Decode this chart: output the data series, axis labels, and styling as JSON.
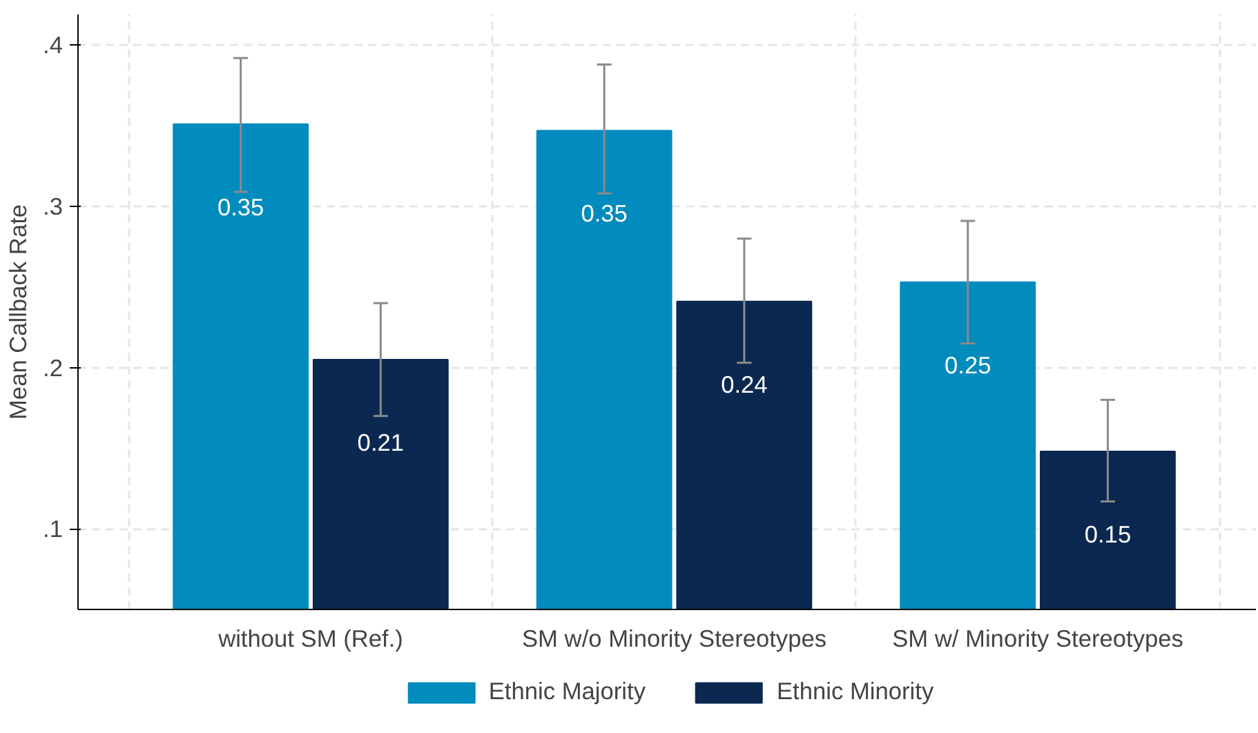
{
  "chart_data": {
    "type": "bar",
    "ylabel": "Mean Callback Rate",
    "categories": [
      "without SM (Ref.)",
      "SM w/o Minority Stereotypes",
      "SM w/ Minority Stereotypes"
    ],
    "series": [
      {
        "name": "Ethnic Majority",
        "color": "#028bbd",
        "values": [
          0.351,
          0.347,
          0.253
        ],
        "errors": [
          [
            0.309,
            0.392
          ],
          [
            0.308,
            0.388
          ],
          [
            0.215,
            0.291
          ]
        ],
        "value_labels": [
          "0.35",
          "0.35",
          "0.25"
        ]
      },
      {
        "name": "Ethnic Minority",
        "color": "#0b2850",
        "values": [
          0.205,
          0.241,
          0.148
        ],
        "errors": [
          [
            0.17,
            0.24
          ],
          [
            0.203,
            0.28
          ],
          [
            0.117,
            0.18
          ]
        ],
        "value_labels": [
          "0.21",
          "0.24",
          "0.15"
        ]
      }
    ],
    "ylim": [
      0.05,
      0.419
    ],
    "yticks": [
      {
        "value": 0.1,
        "label": ".1"
      },
      {
        "value": 0.2,
        "label": ".2"
      },
      {
        "value": 0.3,
        "label": ".3"
      },
      {
        "value": 0.4,
        "label": ".4"
      }
    ],
    "grid": true,
    "legend": "bottom"
  }
}
